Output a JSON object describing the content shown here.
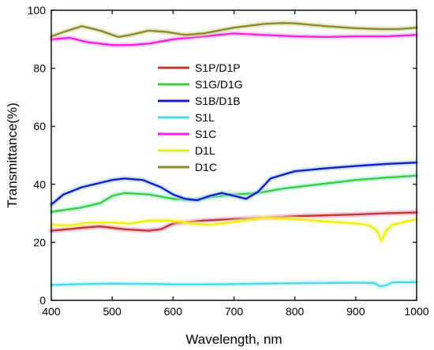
{
  "chart_data": {
    "type": "line",
    "xlabel": "Wavelength, nm",
    "ylabel": "Transmittance(%)",
    "xlim": [
      400,
      1000
    ],
    "ylim": [
      0,
      100
    ],
    "xticks": [
      400,
      500,
      600,
      700,
      800,
      900,
      1000
    ],
    "yticks": [
      0,
      20,
      40,
      60,
      80,
      100
    ],
    "legend_position": "center-left",
    "series": [
      {
        "name": "S1P/D1P",
        "color": "#c0392b",
        "halo": "#f0a0d0",
        "x": [
          400,
          450,
          480,
          520,
          560,
          580,
          600,
          650,
          700,
          750,
          800,
          850,
          900,
          950,
          1000
        ],
        "y": [
          24,
          25,
          25.5,
          24.5,
          24,
          24.5,
          26.5,
          27.5,
          28,
          28.5,
          29,
          29.3,
          29.6,
          30,
          30.3
        ]
      },
      {
        "name": "S1G/D1G",
        "color": "#3dcc3d",
        "halo": "#a0f0e0",
        "x": [
          400,
          450,
          480,
          500,
          520,
          560,
          600,
          630,
          660,
          700,
          740,
          780,
          820,
          860,
          900,
          950,
          1000
        ],
        "y": [
          30.5,
          32,
          33.5,
          36,
          37,
          36.5,
          35,
          34.5,
          35.5,
          36.5,
          37,
          38.5,
          39.5,
          40.5,
          41.5,
          42.3,
          43
        ]
      },
      {
        "name": "S1B/D1B",
        "color": "#1a1acc",
        "halo": "#a0d8f0",
        "x": [
          400,
          420,
          450,
          480,
          500,
          520,
          550,
          580,
          600,
          620,
          640,
          660,
          680,
          700,
          720,
          740,
          760,
          800,
          850,
          900,
          950,
          1000
        ],
        "y": [
          33,
          36.5,
          39,
          40.5,
          41.5,
          42,
          41.5,
          39,
          36.5,
          35,
          34.5,
          36,
          37,
          36,
          35,
          37.5,
          42,
          44.5,
          45.5,
          46.3,
          47,
          47.5
        ]
      },
      {
        "name": "S1L",
        "color": "#4fd5ee",
        "halo": "#b8f4f4",
        "x": [
          400,
          450,
          500,
          550,
          600,
          650,
          700,
          750,
          800,
          850,
          900,
          930,
          940,
          950,
          960,
          1000
        ],
        "y": [
          5.3,
          5.6,
          5.8,
          5.7,
          5.5,
          5.5,
          5.6,
          5.8,
          5.9,
          6,
          6.1,
          6,
          4.8,
          5.2,
          6.2,
          6.3
        ]
      },
      {
        "name": "S1C",
        "color": "#ff22dd",
        "halo": "#f8b8f0",
        "x": [
          400,
          430,
          460,
          500,
          530,
          560,
          600,
          650,
          700,
          750,
          800,
          850,
          900,
          950,
          1000
        ],
        "y": [
          90,
          90.5,
          89,
          88,
          88,
          88.5,
          90,
          91,
          92,
          91.5,
          91,
          90.8,
          91,
          91,
          91.5
        ]
      },
      {
        "name": "D1L",
        "color": "#eeee10",
        "halo": "#f8f8a0",
        "x": [
          400,
          430,
          460,
          500,
          530,
          560,
          600,
          630,
          660,
          700,
          750,
          800,
          850,
          900,
          920,
          935,
          942,
          950,
          960,
          980,
          1000
        ],
        "y": [
          26,
          25.8,
          26.8,
          26.8,
          26.5,
          27.5,
          27.5,
          26.5,
          26,
          27,
          28.5,
          28,
          27.2,
          26.5,
          26,
          24,
          20.5,
          24,
          26,
          27,
          28
        ]
      },
      {
        "name": "D1C",
        "color": "#8b8b2b",
        "halo": "#d8d8a8",
        "x": [
          400,
          420,
          450,
          480,
          510,
          530,
          560,
          590,
          620,
          650,
          700,
          750,
          780,
          800,
          850,
          900,
          940,
          970,
          1000
        ],
        "y": [
          91,
          92.5,
          94.5,
          93,
          90.8,
          91.5,
          93,
          92.5,
          91.5,
          92,
          94,
          95.3,
          95.6,
          95.5,
          94.5,
          93.8,
          93.5,
          93.5,
          94
        ]
      }
    ]
  }
}
